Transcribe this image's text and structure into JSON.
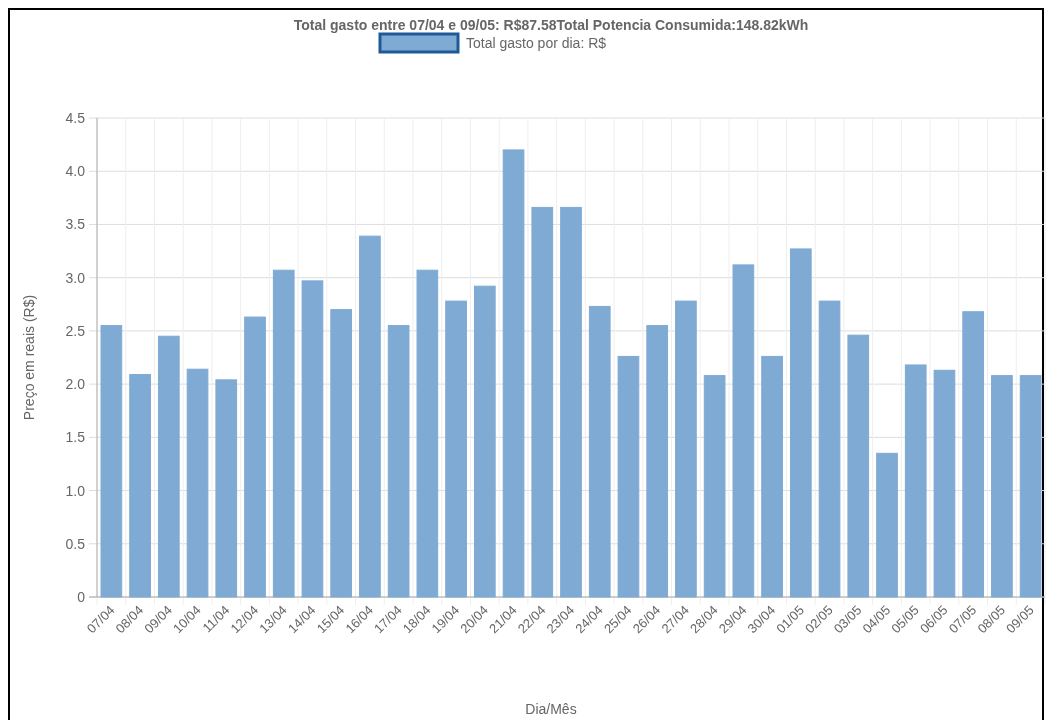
{
  "chart_data": {
    "type": "bar",
    "title": "Total gasto entre 07/04 e 09/05: R$87.58Total Potencia Consumida:148.82kWh",
    "xlabel": "Dia/Mês",
    "ylabel": "Preço em reais (R$)",
    "categories": [
      "07/04",
      "08/04",
      "09/04",
      "10/04",
      "11/04",
      "12/04",
      "13/04",
      "14/04",
      "15/04",
      "16/04",
      "17/04",
      "18/04",
      "19/04",
      "20/04",
      "21/04",
      "22/04",
      "23/04",
      "24/04",
      "25/04",
      "26/04",
      "27/04",
      "28/04",
      "29/04",
      "30/04",
      "01/05",
      "02/05",
      "03/05",
      "04/05",
      "05/05",
      "06/05",
      "07/05",
      "08/05",
      "09/05"
    ],
    "series": [
      {
        "name": "Total gasto por dia: R$",
        "color": "#7eaad4",
        "values": [
          2.55,
          2.09,
          2.45,
          2.14,
          2.04,
          2.63,
          3.07,
          2.97,
          2.7,
          3.39,
          2.55,
          3.07,
          2.78,
          2.92,
          4.2,
          3.66,
          3.66,
          2.73,
          2.26,
          2.55,
          2.78,
          2.08,
          3.12,
          2.26,
          3.27,
          2.78,
          2.46,
          1.35,
          2.18,
          2.13,
          2.68,
          2.08,
          2.08
        ]
      }
    ],
    "ylim": [
      0,
      4.5
    ],
    "yticks": [
      0,
      {
        "value": 0.5,
        "label": "0.5"
      },
      {
        "value": 1,
        "label": "1.0"
      },
      {
        "value": 1.5,
        "label": "1.5"
      },
      {
        "value": 2,
        "label": "2.0"
      },
      {
        "value": 2.5,
        "label": "2.5"
      },
      {
        "value": 3,
        "label": "3.0"
      },
      {
        "value": 3.5,
        "label": "3.5"
      },
      {
        "value": 4,
        "label": "4.0"
      },
      {
        "value": 4.5,
        "label": "4.5"
      }
    ],
    "grid": true,
    "legend": "top"
  }
}
